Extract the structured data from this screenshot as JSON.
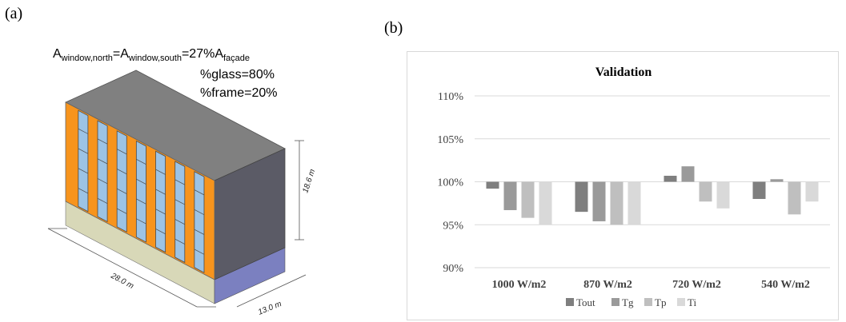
{
  "panel_a": {
    "label": "(a)",
    "eq_A": "A",
    "eq_sub_north": "window,north",
    "eq_eq1": "=A",
    "eq_sub_south": "window,south",
    "eq_eq2": "=27%A",
    "eq_sub_facade": "façade",
    "glass": "%glass=80%",
    "frame": "%frame=20%",
    "dim_height": "18.6 m",
    "dim_length": "28.0 m",
    "dim_depth": "13.0 m",
    "colors": {
      "roof": "#808080",
      "facade_orange": "#f7941d",
      "window_blue": "#9cc3e5",
      "side": "#5a5a68",
      "ground": "#d8d8b8",
      "ground_side": "#7b80c0"
    }
  },
  "panel_b": {
    "label": "(b)"
  },
  "chart_data": {
    "type": "bar",
    "title": "Validation",
    "categories": [
      "1000 W/m2",
      "870 W/m2",
      "720 W/m2",
      "540 W/m2"
    ],
    "series": [
      {
        "name": "Tout",
        "values": [
          99.2,
          96.5,
          100.7,
          98.0
        ],
        "color": "#7f7f7f"
      },
      {
        "name": "Tg",
        "values": [
          96.7,
          95.4,
          101.8,
          100.3
        ],
        "color": "#9a9a9a"
      },
      {
        "name": "Tp",
        "values": [
          95.8,
          95.0,
          97.7,
          96.2
        ],
        "color": "#bfbfbf"
      },
      {
        "name": "Ti",
        "values": [
          95.0,
          95.0,
          96.9,
          97.7
        ],
        "color": "#d9d9d9"
      }
    ],
    "baseline": 100,
    "ylim": [
      90,
      110
    ],
    "yticks": [
      "90%",
      "95%",
      "100%",
      "105%",
      "110%"
    ],
    "ytick_values": [
      90,
      95,
      100,
      105,
      110
    ],
    "grid": true,
    "legend_position": "bottom"
  }
}
